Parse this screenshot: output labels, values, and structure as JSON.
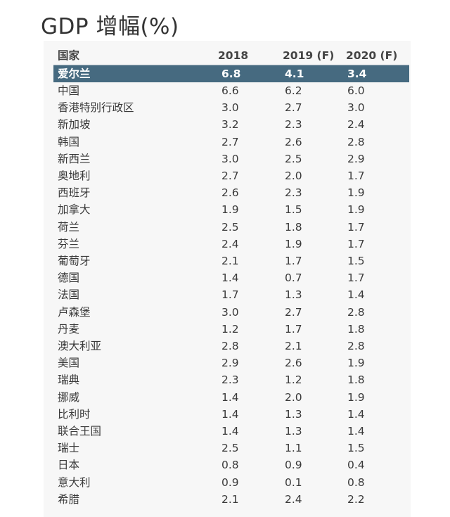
{
  "title": "GDP 增幅(%)",
  "chart_data": {
    "type": "table",
    "title": "GDP 增幅(%)",
    "columns": [
      "国家",
      "2018",
      "2019 (F)",
      "2020 (F)"
    ],
    "highlight_row": 0,
    "highlight_color": "#466a80",
    "rows": [
      [
        "爱尔兰",
        "6.8",
        "4.1",
        "3.4"
      ],
      [
        "中国",
        "6.6",
        "6.2",
        "6.0"
      ],
      [
        "香港特别行政区",
        "3.0",
        "2.7",
        "3.0"
      ],
      [
        "新加坡",
        "3.2",
        "2.3",
        "2.4"
      ],
      [
        "韩国",
        "2.7",
        "2.6",
        "2.8"
      ],
      [
        "新西兰",
        "3.0",
        "2.5",
        "2.9"
      ],
      [
        "奥地利",
        "2.7",
        "2.0",
        "1.7"
      ],
      [
        "西班牙",
        "2.6",
        "2.3",
        "1.9"
      ],
      [
        "加拿大",
        "1.9",
        "1.5",
        "1.9"
      ],
      [
        "荷兰",
        "2.5",
        "1.8",
        "1.7"
      ],
      [
        "芬兰",
        "2.4",
        "1.9",
        "1.7"
      ],
      [
        "葡萄牙",
        "2.1",
        "1.7",
        "1.5"
      ],
      [
        "德国",
        "1.4",
        "0.7",
        "1.7"
      ],
      [
        "法国",
        "1.7",
        "1.3",
        "1.4"
      ],
      [
        "卢森堡",
        "3.0",
        "2.7",
        "2.8"
      ],
      [
        "丹麦",
        "1.2",
        "1.7",
        "1.8"
      ],
      [
        "澳大利亚",
        "2.8",
        "2.1",
        "2.8"
      ],
      [
        "美国",
        "2.9",
        "2.6",
        "1.9"
      ],
      [
        "瑞典",
        "2.3",
        "1.2",
        "1.8"
      ],
      [
        "挪威",
        "1.4",
        "2.0",
        "1.9"
      ],
      [
        "比利时",
        "1.4",
        "1.3",
        "1.4"
      ],
      [
        "联合王国",
        "1.4",
        "1.3",
        "1.4"
      ],
      [
        "瑞士",
        "2.5",
        "1.1",
        "1.5"
      ],
      [
        "日本",
        "0.8",
        "0.9",
        "0.4"
      ],
      [
        "意大利",
        "0.9",
        "0.1",
        "0.8"
      ],
      [
        "希腊",
        "2.1",
        "2.4",
        "2.2"
      ]
    ]
  }
}
